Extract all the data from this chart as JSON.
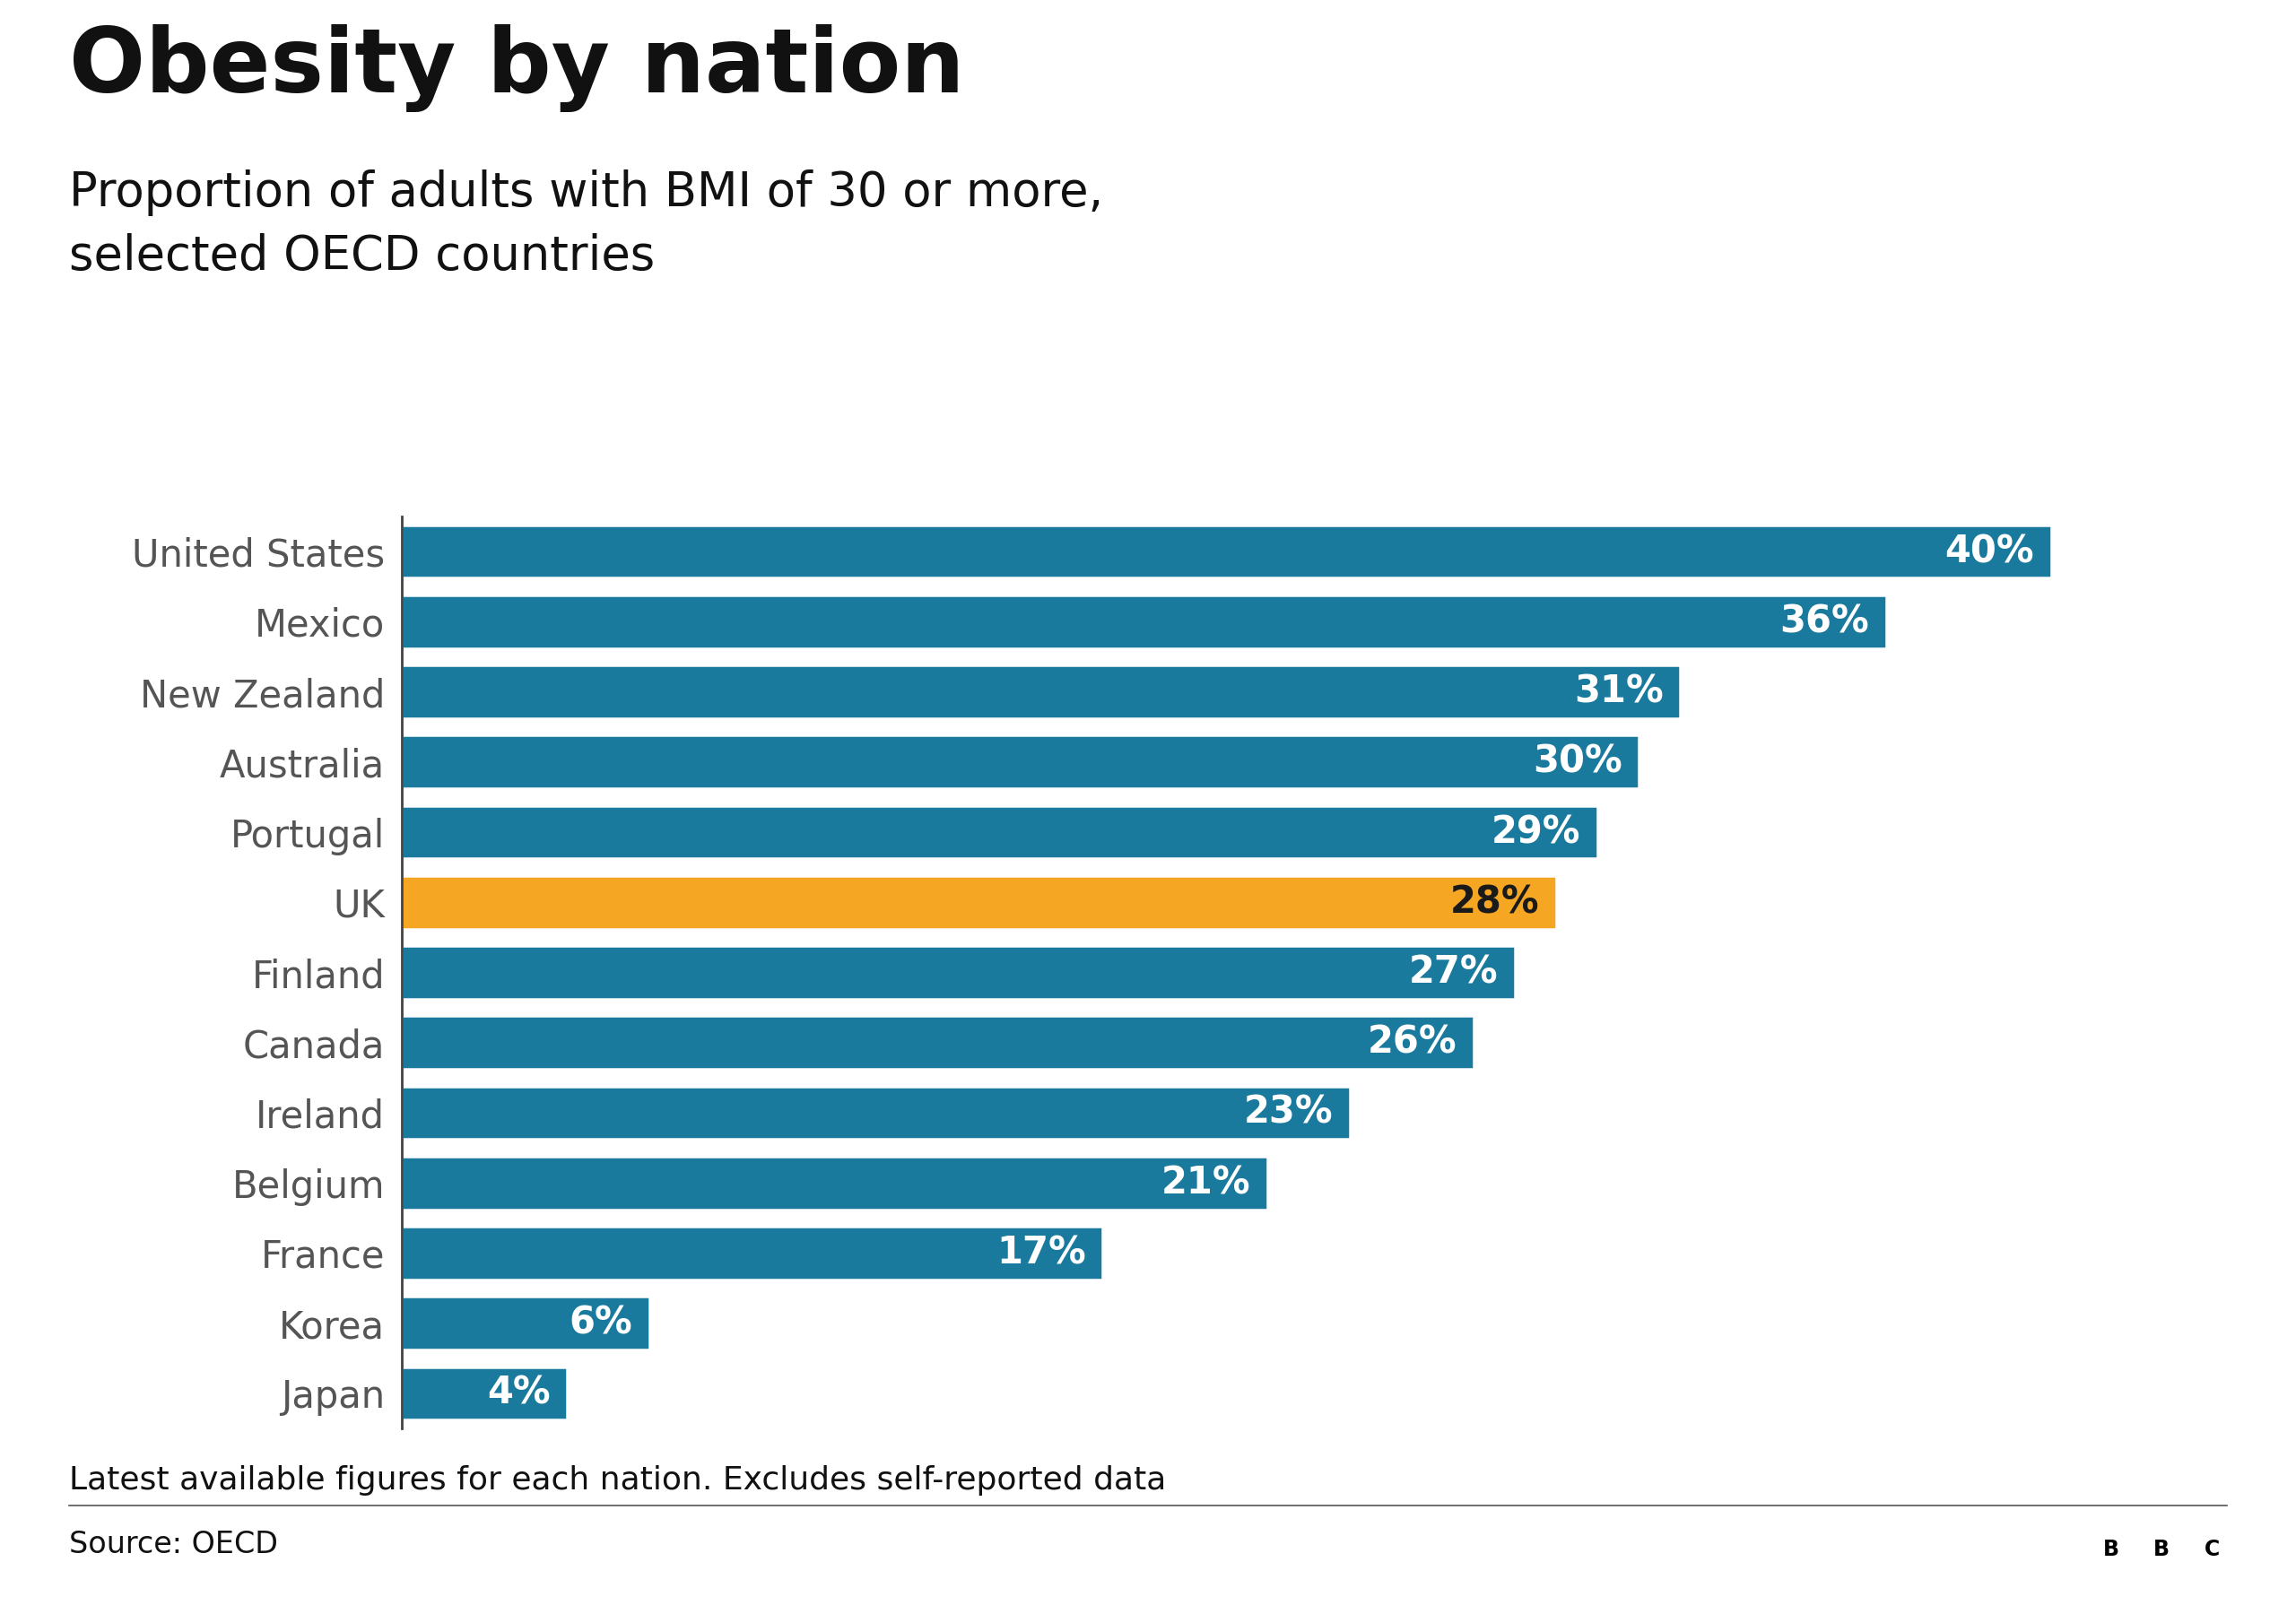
{
  "title": "Obesity by nation",
  "subtitle": "Proportion of adults with BMI of 30 or more,\nselected OECD countries",
  "footnote": "Latest available figures for each nation. Excludes self-reported data",
  "source": "Source: OECD",
  "countries": [
    "United States",
    "Mexico",
    "New Zealand",
    "Australia",
    "Portugal",
    "UK",
    "Finland",
    "Canada",
    "Ireland",
    "Belgium",
    "France",
    "Korea",
    "Japan"
  ],
  "values": [
    40,
    36,
    31,
    30,
    29,
    28,
    27,
    26,
    23,
    21,
    17,
    6,
    4
  ],
  "bar_color_default": "#1a7a9e",
  "bar_color_highlight": "#f5a623",
  "highlight_index": 5,
  "label_color_default": "#ffffff",
  "label_color_highlight": "#1a1a1a",
  "background_color": "#ffffff",
  "title_fontsize": 72,
  "subtitle_fontsize": 38,
  "label_fontsize": 30,
  "tick_fontsize": 30,
  "footnote_fontsize": 26,
  "source_fontsize": 24,
  "xlim": [
    0,
    44
  ]
}
